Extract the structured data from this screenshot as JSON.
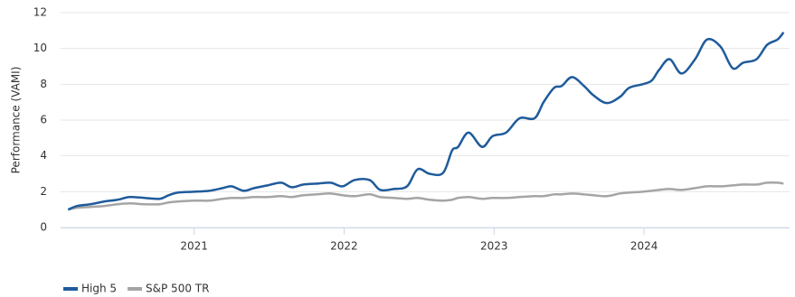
{
  "chart_data": {
    "type": "line",
    "y_label": "Performance (VAMI)",
    "x": [
      2020.16,
      2020.22,
      2020.31,
      2020.4,
      2020.49,
      2020.57,
      2020.67,
      2020.77,
      2020.83,
      2020.89,
      2021.0,
      2021.1,
      2021.19,
      2021.25,
      2021.33,
      2021.4,
      2021.49,
      2021.58,
      2021.65,
      2021.73,
      2021.82,
      2021.91,
      2021.99,
      2022.07,
      2022.17,
      2022.24,
      2022.33,
      2022.42,
      2022.49,
      2022.57,
      2022.66,
      2022.72,
      2022.76,
      2022.83,
      2022.92,
      2022.99,
      2023.08,
      2023.17,
      2023.27,
      2023.33,
      2023.4,
      2023.45,
      2023.52,
      2023.6,
      2023.66,
      2023.75,
      2023.84,
      2023.9,
      2023.99,
      2024.05,
      2024.1,
      2024.17,
      2024.25,
      2024.34,
      2024.42,
      2024.51,
      2024.59,
      2024.66,
      2024.75,
      2024.82,
      2024.89,
      2024.93
    ],
    "series": [
      {
        "name": "High 5",
        "color": "#1f5b9b",
        "values": [
          1.0,
          1.2,
          1.3,
          1.45,
          1.55,
          1.7,
          1.65,
          1.6,
          1.8,
          1.95,
          2.0,
          2.05,
          2.2,
          2.3,
          2.05,
          2.2,
          2.35,
          2.5,
          2.25,
          2.4,
          2.45,
          2.5,
          2.3,
          2.65,
          2.65,
          2.1,
          2.15,
          2.3,
          3.25,
          3.0,
          3.05,
          4.3,
          4.5,
          5.3,
          4.5,
          5.1,
          5.3,
          6.1,
          6.1,
          7.0,
          7.8,
          7.9,
          8.4,
          7.9,
          7.4,
          6.95,
          7.3,
          7.8,
          8.0,
          8.2,
          8.8,
          9.4,
          8.6,
          9.4,
          10.5,
          10.1,
          8.9,
          9.2,
          9.4,
          10.2,
          10.5,
          10.9
        ]
      },
      {
        "name": "S&P 500 TR",
        "color": "#a5a5a5",
        "values": [
          1.0,
          1.1,
          1.15,
          1.2,
          1.3,
          1.35,
          1.3,
          1.3,
          1.4,
          1.45,
          1.5,
          1.5,
          1.6,
          1.65,
          1.65,
          1.7,
          1.7,
          1.75,
          1.7,
          1.8,
          1.85,
          1.9,
          1.8,
          1.75,
          1.85,
          1.7,
          1.65,
          1.6,
          1.65,
          1.55,
          1.5,
          1.55,
          1.65,
          1.7,
          1.6,
          1.65,
          1.65,
          1.7,
          1.75,
          1.75,
          1.85,
          1.85,
          1.9,
          1.85,
          1.8,
          1.75,
          1.9,
          1.95,
          2.0,
          2.05,
          2.1,
          2.15,
          2.1,
          2.2,
          2.3,
          2.3,
          2.35,
          2.4,
          2.4,
          2.5,
          2.5,
          2.45
        ]
      }
    ],
    "xlim": [
      2020.11,
      2024.97
    ],
    "xticks": [
      2021,
      2022,
      2023,
      2024
    ],
    "ylim": [
      0,
      12
    ],
    "yticks": [
      0,
      2,
      4,
      6,
      8,
      10,
      12
    ],
    "grid": true,
    "legend": "bottom-left"
  }
}
